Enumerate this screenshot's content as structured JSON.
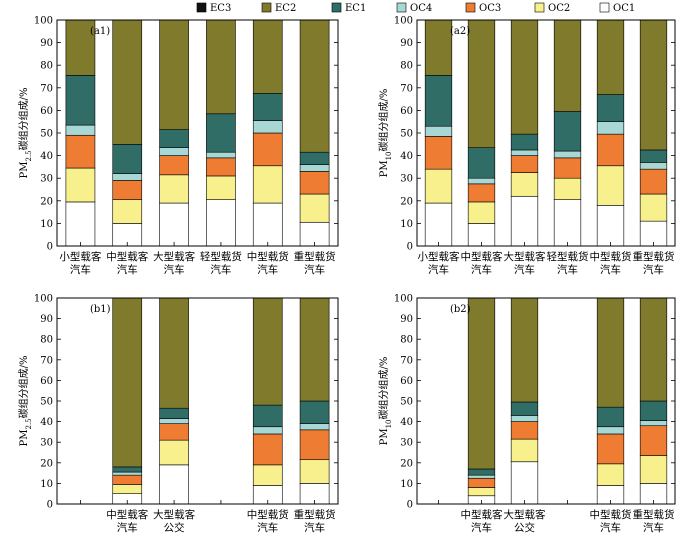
{
  "legend": {
    "order": [
      "EC3",
      "EC2",
      "EC1",
      "OC4",
      "OC3",
      "OC2",
      "OC1"
    ],
    "colors": {
      "EC3": "#111111",
      "EC2": "#807a2c",
      "EC1": "#2f6d66",
      "OC4": "#a8d8d5",
      "OC3": "#ee7d33",
      "OC2": "#f7f08c",
      "OC1": "#ffffff"
    }
  },
  "chart_data": [
    {
      "type": "bar",
      "stacked": true,
      "panel_label": "(a1)",
      "ylabel": "PM2.5碳组分组成/%",
      "ylabel_main": "PM",
      "ylabel_sub": "2.5",
      "ylabel_rest": "碳组分组成/%",
      "ylim": [
        0,
        100
      ],
      "yticks": [
        0,
        10,
        20,
        30,
        40,
        50,
        60,
        70,
        80,
        90,
        100
      ],
      "categories": [
        [
          "小型载客",
          "汽车"
        ],
        [
          "中型载客",
          "汽车"
        ],
        [
          "大型载客",
          "汽车"
        ],
        [
          "轻型载货",
          "汽车"
        ],
        [
          "中型载货",
          "汽车"
        ],
        [
          "重型载货",
          "汽车"
        ]
      ],
      "series": [
        {
          "name": "OC1",
          "values": [
            19.5,
            10.0,
            19.0,
            20.5,
            19.0,
            10.5
          ]
        },
        {
          "name": "OC2",
          "values": [
            15.0,
            10.5,
            12.5,
            10.5,
            16.5,
            12.5
          ]
        },
        {
          "name": "OC3",
          "values": [
            14.5,
            8.5,
            8.5,
            8.0,
            14.5,
            10.0
          ]
        },
        {
          "name": "OC4",
          "values": [
            4.5,
            3.0,
            3.5,
            2.5,
            5.5,
            3.0
          ]
        },
        {
          "name": "EC1",
          "values": [
            22.0,
            13.0,
            8.0,
            17.0,
            12.0,
            5.5
          ]
        },
        {
          "name": "EC2",
          "values": [
            24.5,
            55.0,
            48.5,
            41.5,
            32.5,
            58.5
          ]
        },
        {
          "name": "EC3",
          "values": [
            0,
            0,
            0,
            0,
            0,
            0
          ]
        }
      ]
    },
    {
      "type": "bar",
      "stacked": true,
      "panel_label": "(a2)",
      "ylabel": "PM10碳组分组成/%",
      "ylabel_main": "PM",
      "ylabel_sub": "10",
      "ylabel_rest": "碳组分组成/%",
      "ylim": [
        0,
        100
      ],
      "yticks": [
        0,
        10,
        20,
        30,
        40,
        50,
        60,
        70,
        80,
        90,
        100
      ],
      "categories": [
        [
          "小型载客",
          "汽车"
        ],
        [
          "中型载客",
          "汽车"
        ],
        [
          "大型载客",
          "汽车"
        ],
        [
          "轻型载货",
          "汽车"
        ],
        [
          "中型载货",
          "汽车"
        ],
        [
          "重型载货",
          "汽车"
        ]
      ],
      "series": [
        {
          "name": "OC1",
          "values": [
            19.0,
            10.0,
            22.0,
            20.5,
            18.0,
            11.0
          ]
        },
        {
          "name": "OC2",
          "values": [
            15.0,
            9.5,
            10.5,
            9.5,
            17.5,
            12.0
          ]
        },
        {
          "name": "OC3",
          "values": [
            14.5,
            8.0,
            7.5,
            9.0,
            14.0,
            11.0
          ]
        },
        {
          "name": "OC4",
          "values": [
            4.5,
            2.5,
            2.5,
            3.0,
            5.5,
            3.0
          ]
        },
        {
          "name": "EC1",
          "values": [
            22.5,
            13.5,
            7.0,
            17.5,
            12.0,
            5.5
          ]
        },
        {
          "name": "EC2",
          "values": [
            24.5,
            56.5,
            50.5,
            40.5,
            33.0,
            57.5
          ]
        },
        {
          "name": "EC3",
          "values": [
            0,
            0,
            0,
            0,
            0,
            0
          ]
        }
      ]
    },
    {
      "type": "bar",
      "stacked": true,
      "panel_label": "(b1)",
      "ylabel": "PM2.5碳组分组成/%",
      "ylabel_main": "PM",
      "ylabel_sub": "2.5",
      "ylabel_rest": "碳组分组成/%",
      "ylim": [
        0,
        100
      ],
      "yticks": [
        0,
        10,
        20,
        30,
        40,
        50,
        60,
        70,
        80,
        90,
        100
      ],
      "categories": [
        [],
        [
          "中型载客",
          "汽车"
        ],
        [
          "大型载客",
          "公交"
        ],
        [],
        [
          "中型载货",
          "汽车"
        ],
        [
          "重型载货",
          "汽车"
        ]
      ],
      "series": [
        {
          "name": "OC1",
          "values": [
            null,
            5.0,
            19.0,
            null,
            9.0,
            10.0
          ]
        },
        {
          "name": "OC2",
          "values": [
            null,
            4.5,
            12.0,
            null,
            10.0,
            11.5
          ]
        },
        {
          "name": "OC3",
          "values": [
            null,
            4.5,
            8.0,
            null,
            15.0,
            14.5
          ]
        },
        {
          "name": "OC4",
          "values": [
            null,
            1.5,
            2.5,
            null,
            3.5,
            3.0
          ]
        },
        {
          "name": "EC1",
          "values": [
            null,
            2.5,
            5.0,
            null,
            10.5,
            11.0
          ]
        },
        {
          "name": "EC2",
          "values": [
            null,
            82.0,
            53.5,
            null,
            52.0,
            50.0
          ]
        },
        {
          "name": "EC3",
          "values": [
            null,
            0,
            0,
            null,
            0,
            0
          ]
        }
      ]
    },
    {
      "type": "bar",
      "stacked": true,
      "panel_label": "(b2)",
      "ylabel": "PM10碳组分组成/%",
      "ylabel_main": "PM",
      "ylabel_sub": "10",
      "ylabel_rest": "碳组分组成/%",
      "ylim": [
        0,
        100
      ],
      "yticks": [
        0,
        10,
        20,
        30,
        40,
        50,
        60,
        70,
        80,
        90,
        100
      ],
      "categories": [
        [],
        [
          "中型载客",
          "汽车"
        ],
        [
          "大型载客",
          "公交"
        ],
        [],
        [
          "中型载货",
          "汽车"
        ],
        [
          "重型载货",
          "汽车"
        ]
      ],
      "series": [
        {
          "name": "OC1",
          "values": [
            null,
            4.0,
            20.5,
            null,
            9.0,
            10.0
          ]
        },
        {
          "name": "OC2",
          "values": [
            null,
            4.0,
            11.0,
            null,
            10.5,
            13.5
          ]
        },
        {
          "name": "OC3",
          "values": [
            null,
            4.5,
            8.5,
            null,
            14.5,
            14.5
          ]
        },
        {
          "name": "OC4",
          "values": [
            null,
            1.5,
            3.0,
            null,
            3.5,
            2.5
          ]
        },
        {
          "name": "EC1",
          "values": [
            null,
            3.0,
            6.5,
            null,
            9.5,
            9.5
          ]
        },
        {
          "name": "EC2",
          "values": [
            null,
            83.0,
            50.5,
            null,
            53.0,
            50.0
          ]
        },
        {
          "name": "EC3",
          "values": [
            null,
            0,
            0,
            null,
            0,
            0
          ]
        }
      ]
    }
  ]
}
